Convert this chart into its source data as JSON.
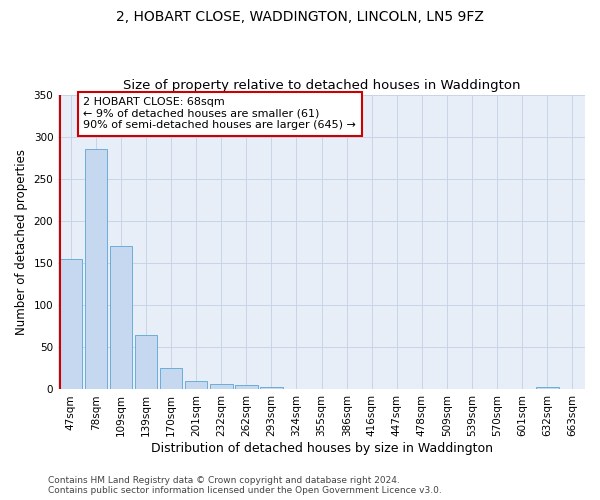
{
  "title": "2, HOBART CLOSE, WADDINGTON, LINCOLN, LN5 9FZ",
  "subtitle": "Size of property relative to detached houses in Waddington",
  "xlabel": "Distribution of detached houses by size in Waddington",
  "ylabel": "Number of detached properties",
  "categories": [
    "47sqm",
    "78sqm",
    "109sqm",
    "139sqm",
    "170sqm",
    "201sqm",
    "232sqm",
    "262sqm",
    "293sqm",
    "324sqm",
    "355sqm",
    "386sqm",
    "416sqm",
    "447sqm",
    "478sqm",
    "509sqm",
    "539sqm",
    "570sqm",
    "601sqm",
    "632sqm",
    "663sqm"
  ],
  "values": [
    155,
    285,
    170,
    65,
    25,
    10,
    7,
    5,
    3,
    0,
    0,
    0,
    0,
    0,
    0,
    0,
    0,
    0,
    0,
    3,
    0
  ],
  "bar_color": "#c5d8f0",
  "bar_edgecolor": "#6aaed6",
  "vline_color": "#cc0000",
  "vline_x_idx": -0.42,
  "annotation_text": "2 HOBART CLOSE: 68sqm\n← 9% of detached houses are smaller (61)\n90% of semi-detached houses are larger (645) →",
  "annotation_box_edgecolor": "#cc0000",
  "annotation_box_facecolor": "#ffffff",
  "ylim": [
    0,
    350
  ],
  "yticks": [
    0,
    50,
    100,
    150,
    200,
    250,
    300,
    350
  ],
  "footer_text": "Contains HM Land Registry data © Crown copyright and database right 2024.\nContains public sector information licensed under the Open Government Licence v3.0.",
  "title_fontsize": 10,
  "subtitle_fontsize": 9.5,
  "xlabel_fontsize": 9,
  "ylabel_fontsize": 8.5,
  "tick_fontsize": 7.5,
  "ann_fontsize": 8,
  "footer_fontsize": 6.5,
  "grid_color": "#c8d4e8",
  "bg_color": "#e8eef8"
}
